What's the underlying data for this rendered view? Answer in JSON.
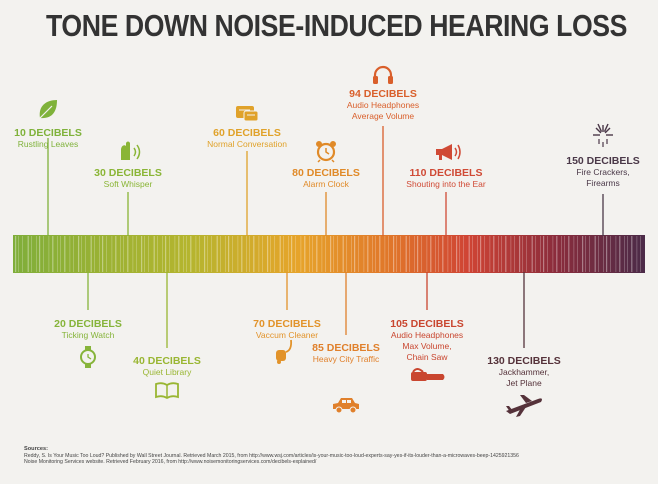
{
  "title": "TONE DOWN NOISE-INDUCED HEARING LOSS",
  "levels_above": [
    {
      "db": "10 DECIBELS",
      "desc": [
        "Rustling Leaves"
      ],
      "icon": "leaf-icon",
      "color": "#7fb23a",
      "value": 10
    },
    {
      "db": "30 DECIBELS",
      "desc": [
        "Soft Whisper"
      ],
      "icon": "whisper-icon",
      "color": "#8ab536",
      "value": 30
    },
    {
      "db": "60 DECIBELS",
      "desc": [
        "Normal Conversation"
      ],
      "icon": "speech-bubble-icon",
      "color": "#e0a22a",
      "value": 60
    },
    {
      "db": "80 DECIBELS",
      "desc": [
        "Alarm Clock"
      ],
      "icon": "alarm-clock-icon",
      "color": "#e08a28",
      "value": 80
    },
    {
      "db": "94 DECIBELS",
      "desc": [
        "Audio Headphones",
        "Average Volume"
      ],
      "icon": "headphones-icon",
      "color": "#d95f2b",
      "value": 94
    },
    {
      "db": "110 DECIBELS",
      "desc": [
        "Shouting into the Ear"
      ],
      "icon": "megaphone-icon",
      "color": "#d04a35",
      "value": 110
    },
    {
      "db": "150 DECIBELS",
      "desc": [
        "Fire Crackers,",
        "Firearms"
      ],
      "icon": "fireworks-icon",
      "color": "#4a3848",
      "value": 150
    }
  ],
  "levels_below": [
    {
      "db": "20 DECIBELS",
      "desc": [
        "Ticking Watch"
      ],
      "icon": "watch-icon",
      "color": "#86b43a",
      "value": 20
    },
    {
      "db": "40 DECIBELS",
      "desc": [
        "Quiet Library"
      ],
      "icon": "book-icon",
      "color": "#99b632",
      "value": 40
    },
    {
      "db": "70 DECIBELS",
      "desc": [
        "Vaccum Cleaner"
      ],
      "icon": "vacuum-icon",
      "color": "#e2932a",
      "value": 70
    },
    {
      "db": "85 DECIBELS",
      "desc": [
        "Heavy City Traffic"
      ],
      "icon": "car-icon",
      "color": "#e0802b",
      "value": 85
    },
    {
      "db": "105 DECIBELS",
      "desc": [
        "Audio Headphones",
        "Max Volume,",
        "Chain Saw"
      ],
      "icon": "chainsaw-icon",
      "color": "#c9462f",
      "value": 105
    },
    {
      "db": "130 DECIBELS",
      "desc": [
        "Jackhammer,",
        "Jet Plane"
      ],
      "icon": "jet-plane-icon",
      "color": "#55323a",
      "value": 130
    }
  ],
  "sources": {
    "heading": "Sources:",
    "lines": [
      "Reddy, S. Is Your Music Too Loud? Published by Wall Street Journal. Retrieved March 2015, from http://www.wsj.com/articles/is-your-music-too-loud-experts-say-yes-if-its-louder-than-a-microwaves-beep-1425921356",
      "Noise Monitoring Services website. Retrieved February 2016, from http://www.noisemonitoringservices.com/decibels-explained/"
    ]
  }
}
